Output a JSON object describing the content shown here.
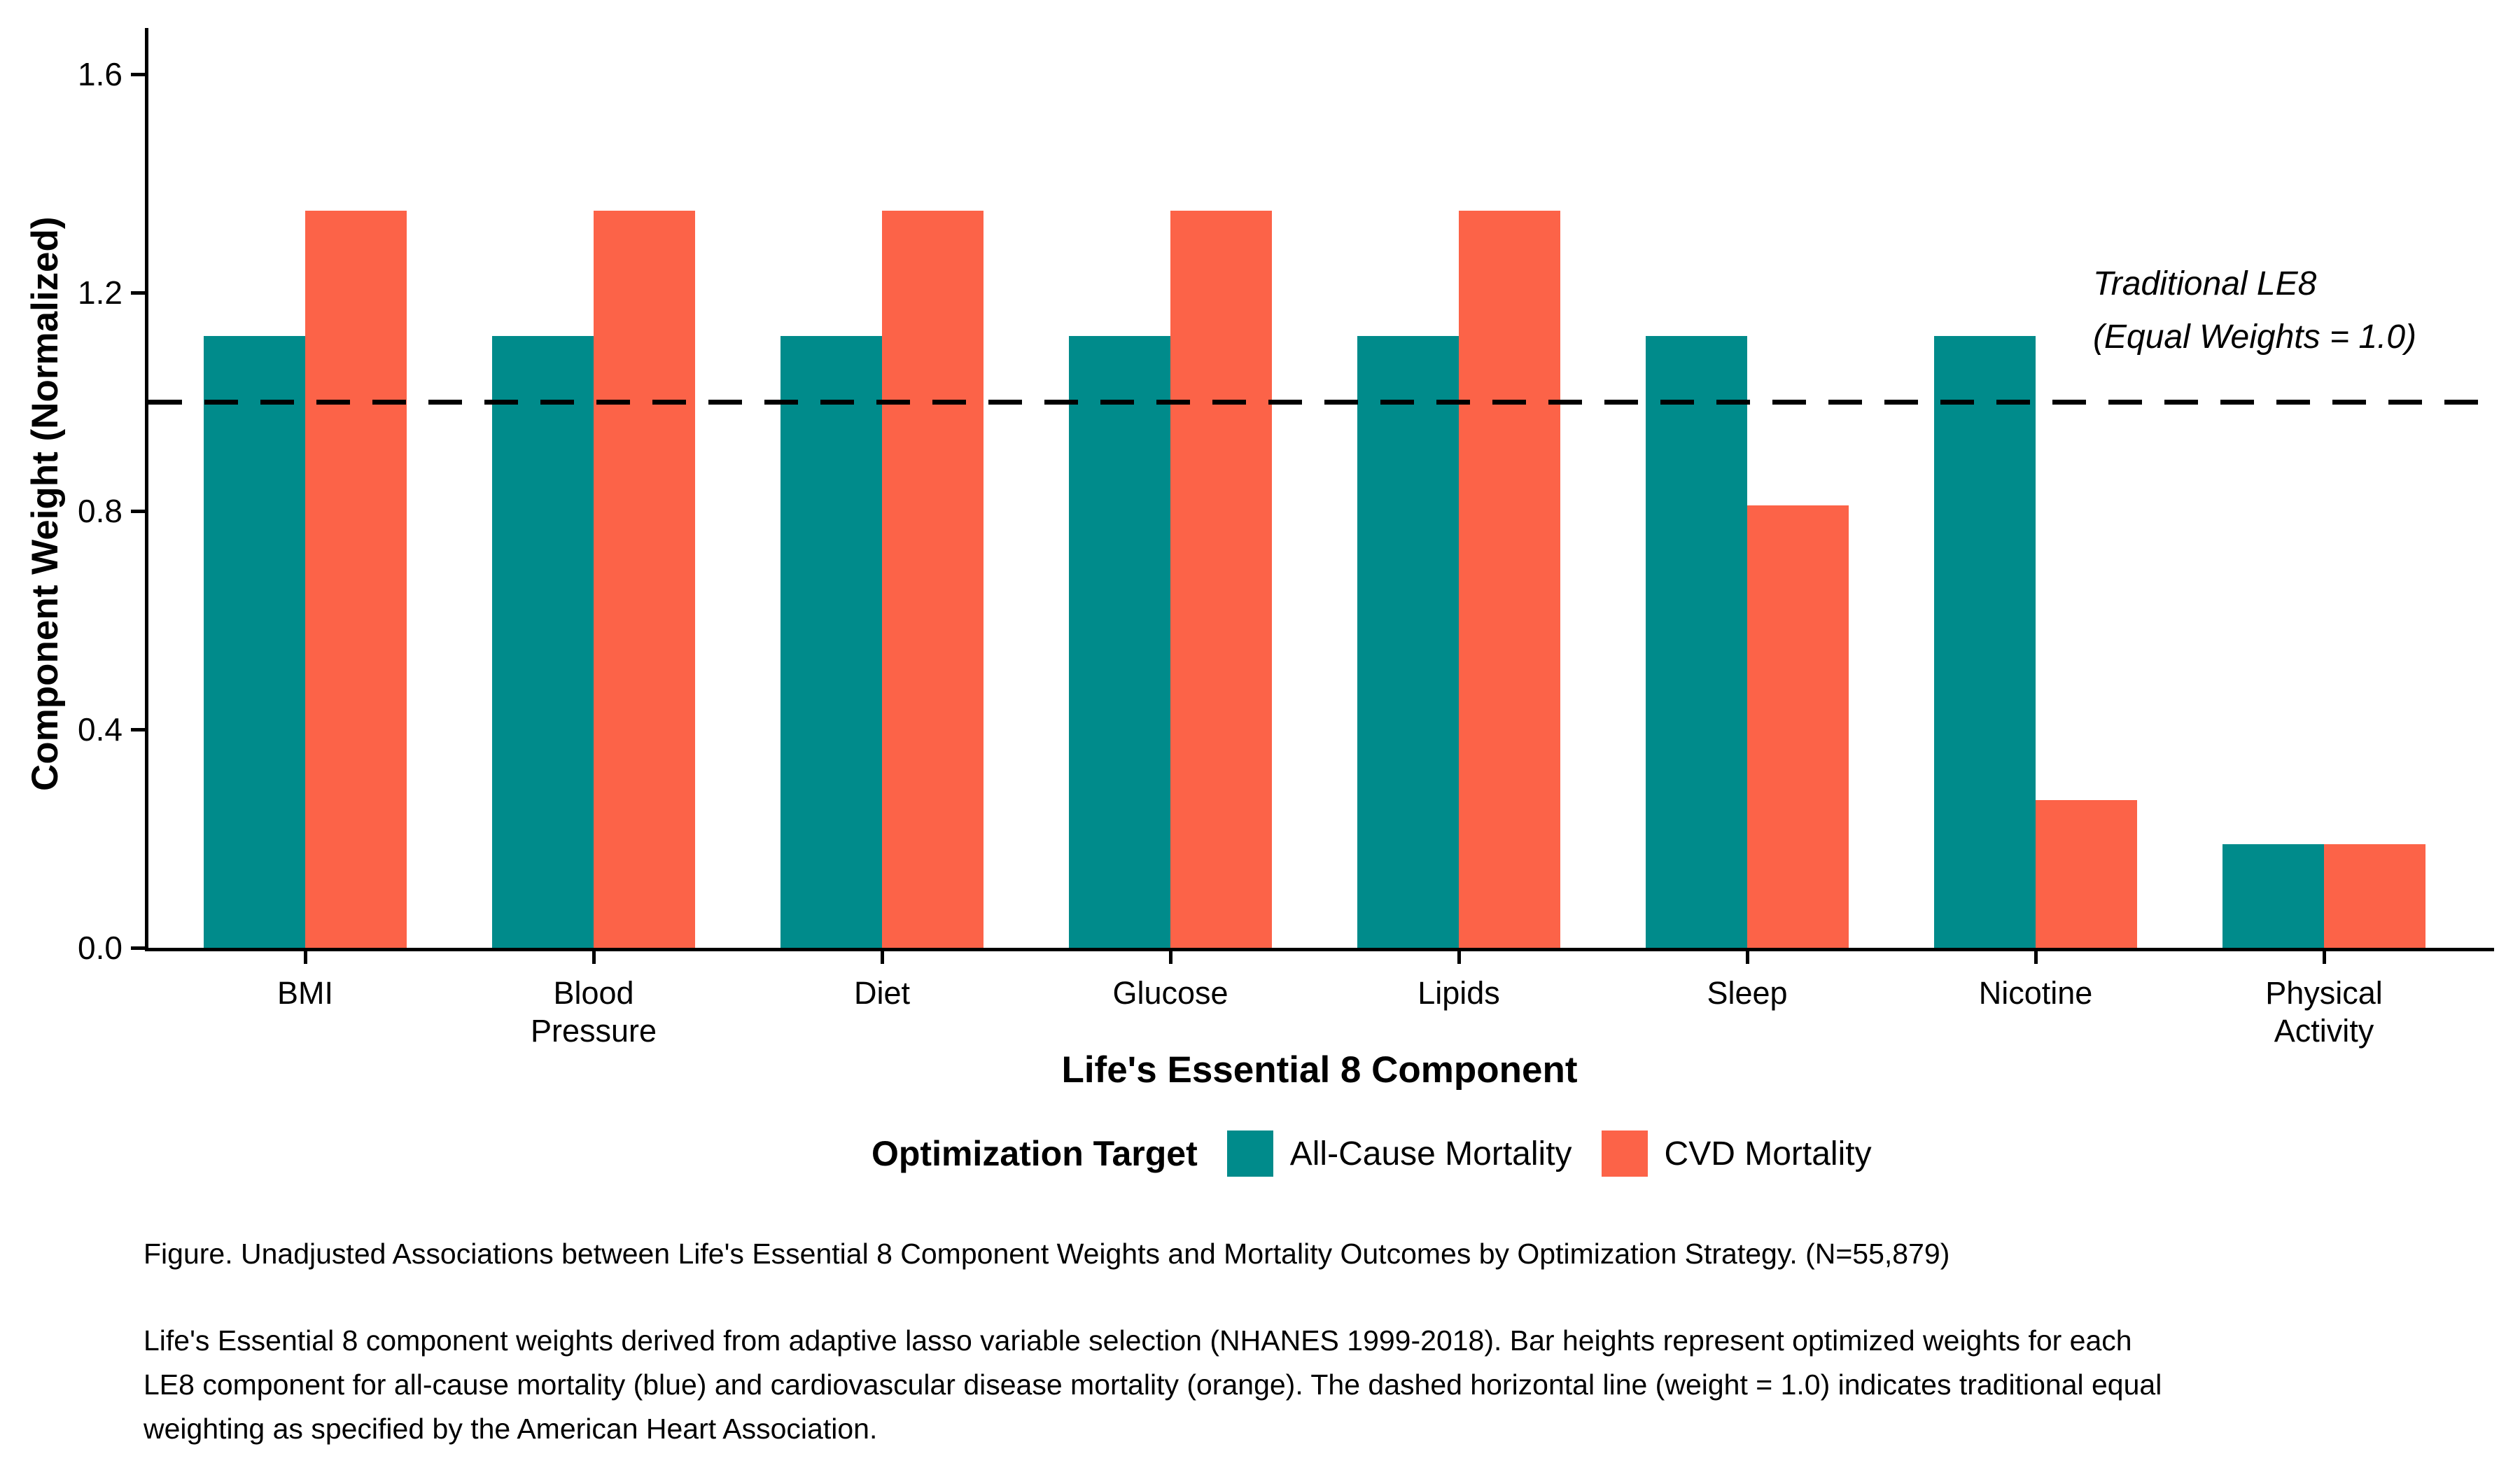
{
  "chart_data": {
    "type": "bar",
    "categories": [
      "BMI",
      "Blood Pressure",
      "Diet",
      "Glucose",
      "Lipids",
      "Sleep",
      "Nicotine",
      "Physical Activity"
    ],
    "series": [
      {
        "name": "All-Cause Mortality",
        "color": "#008B8B",
        "values": [
          1.12,
          1.12,
          1.12,
          1.12,
          1.12,
          1.12,
          1.12,
          0.19
        ]
      },
      {
        "name": "CVD Mortality",
        "color": "#FC6348",
        "values": [
          1.35,
          1.35,
          1.35,
          1.35,
          1.35,
          0.81,
          0.27,
          0.19
        ]
      }
    ],
    "title": "",
    "xlabel": "Life's Essential 8 Component",
    "ylabel": "Component Weight (Normalized)",
    "ylim": [
      0,
      1.68
    ],
    "yticks": [
      0.0,
      0.4,
      0.8,
      1.2,
      1.6
    ],
    "grid": false,
    "legend_position": "bottom",
    "legend_title": "Optimization Target",
    "reference_line": {
      "value": 1.0,
      "style": "dashed",
      "color": "#000000"
    },
    "annotation": {
      "line1": "Traditional LE8",
      "line2": "(Equal Weights = 1.0)"
    }
  },
  "caption": {
    "figure_line": "Figure. Unadjusted Associations between Life's Essential 8 Component Weights and Mortality Outcomes by Optimization Strategy. (N=55,879)",
    "body": "Life's Essential 8 component weights derived from adaptive lasso variable selection (NHANES 1999-2018). Bar heights represent optimized weights for each LE8 component for all-cause mortality (blue) and cardiovascular disease mortality (orange). The dashed horizontal line (weight = 1.0) indicates traditional equal weighting as specified by the American Heart Association."
  }
}
